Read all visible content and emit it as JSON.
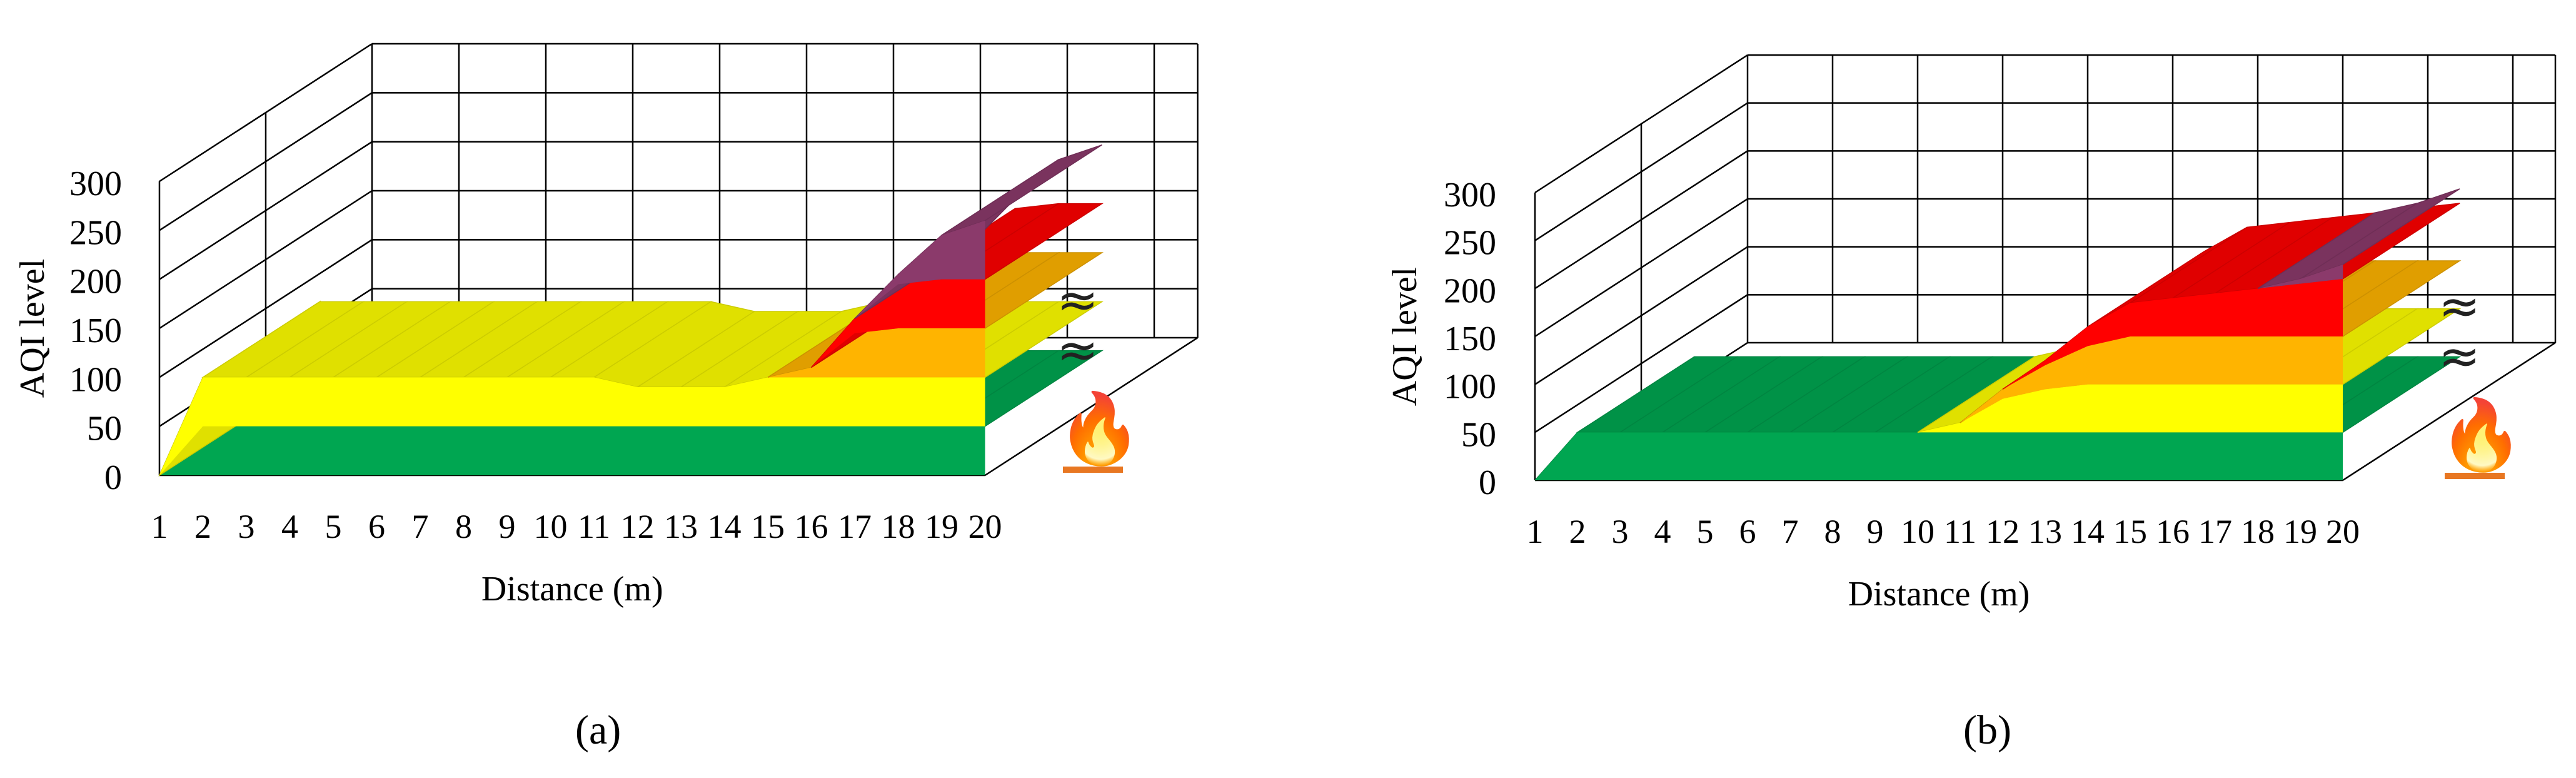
{
  "panels": [
    {
      "id": "a",
      "caption": "(a)",
      "chart_data": {
        "type": "area",
        "subtype": "3d-stacked-area",
        "title": "",
        "xlabel": "Distance (m)",
        "ylabel": "AQI level",
        "categories": [
          "1",
          "2",
          "3",
          "4",
          "5",
          "6",
          "7",
          "8",
          "9",
          "10",
          "11",
          "12",
          "13",
          "14",
          "15",
          "16",
          "17",
          "18",
          "19",
          "20"
        ],
        "yticks": [
          "0",
          "50",
          "100",
          "150",
          "200",
          "250",
          "300"
        ],
        "ylim": [
          0,
          300
        ],
        "series": [
          {
            "color": "#00a651",
            "values": [
              0,
              50,
              50,
              50,
              50,
              50,
              50,
              50,
              50,
              50,
              50,
              50,
              50,
              50,
              50,
              50,
              50,
              50,
              50,
              50
            ]
          },
          {
            "color": "#ffff00",
            "values": [
              0,
              50,
              50,
              50,
              50,
              50,
              50,
              50,
              50,
              50,
              50,
              40,
              40,
              40,
              50,
              50,
              50,
              50,
              50,
              50
            ]
          },
          {
            "color": "#ffb400",
            "values": [
              0,
              0,
              0,
              0,
              0,
              0,
              0,
              0,
              0,
              0,
              0,
              0,
              0,
              0,
              0,
              10,
              45,
              50,
              50,
              50
            ]
          },
          {
            "color": "#ff0000",
            "values": [
              0,
              0,
              0,
              0,
              0,
              0,
              0,
              0,
              0,
              0,
              0,
              0,
              0,
              0,
              0,
              0,
              15,
              45,
              50,
              50
            ]
          },
          {
            "color": "#8b3a6b",
            "values": [
              0,
              0,
              0,
              0,
              0,
              0,
              0,
              0,
              0,
              0,
              0,
              0,
              0,
              0,
              0,
              0,
              0,
              10,
              45,
              60
            ]
          }
        ],
        "grid": true
      }
    },
    {
      "id": "b",
      "caption": "(b)",
      "chart_data": {
        "type": "area",
        "subtype": "3d-stacked-area",
        "title": "",
        "xlabel": "Distance (m)",
        "ylabel": "AQI level",
        "categories": [
          "1",
          "2",
          "3",
          "4",
          "5",
          "6",
          "7",
          "8",
          "9",
          "10",
          "11",
          "12",
          "13",
          "14",
          "15",
          "16",
          "17",
          "18",
          "19",
          "20"
        ],
        "yticks": [
          "0",
          "50",
          "100",
          "150",
          "200",
          "250",
          "300"
        ],
        "ylim": [
          0,
          300
        ],
        "series": [
          {
            "color": "#00a651",
            "values": [
              0,
              50,
              50,
              50,
              50,
              50,
              50,
              50,
              50,
              50,
              50,
              50,
              50,
              50,
              50,
              50,
              50,
              50,
              50,
              50
            ]
          },
          {
            "color": "#ffff00",
            "values": [
              0,
              0,
              0,
              0,
              0,
              0,
              0,
              0,
              0,
              0,
              10,
              35,
              45,
              50,
              50,
              50,
              50,
              50,
              50,
              50
            ]
          },
          {
            "color": "#ffb400",
            "values": [
              0,
              0,
              0,
              0,
              0,
              0,
              0,
              0,
              0,
              0,
              0,
              10,
              25,
              40,
              50,
              50,
              50,
              50,
              50,
              50
            ]
          },
          {
            "color": "#ff0000",
            "values": [
              0,
              0,
              0,
              0,
              0,
              0,
              0,
              0,
              0,
              0,
              0,
              0,
              5,
              20,
              35,
              40,
              45,
              50,
              55,
              60
            ]
          },
          {
            "color": "#8b3a6b",
            "values": [
              0,
              0,
              0,
              0,
              0,
              0,
              0,
              0,
              0,
              0,
              0,
              0,
              0,
              0,
              0,
              0,
              0,
              0,
              5,
              15
            ]
          }
        ],
        "grid": true
      }
    }
  ],
  "icons": {
    "steam": "≈ ≈",
    "fire": "🔥"
  }
}
